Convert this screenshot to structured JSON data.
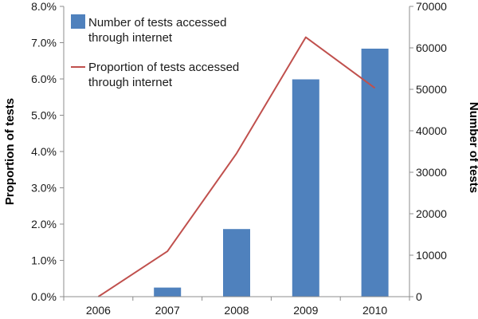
{
  "chart_data": {
    "type": "bar+line",
    "categories": [
      "2006",
      "2007",
      "2008",
      "2009",
      "2010"
    ],
    "series": [
      {
        "name": "Number of tests accessed through internet",
        "legend_lines": [
          "Number of tests accessed",
          "through internet"
        ],
        "type": "bar",
        "axis": "right",
        "color": "#4f81bd",
        "values": [
          0,
          2200,
          16300,
          52400,
          59800
        ]
      },
      {
        "name": "Proportion of tests accessed through internet",
        "legend_lines": [
          "Proportion of tests accessed",
          "through internet"
        ],
        "type": "line",
        "axis": "left",
        "color": "#c0504d",
        "values": [
          0.0,
          1.25,
          3.95,
          7.15,
          5.75
        ]
      }
    ],
    "y_left": {
      "label": "Proportion of tests",
      "ylim": [
        0,
        8
      ],
      "ticks": [
        0,
        1,
        2,
        3,
        4,
        5,
        6,
        7,
        8
      ],
      "tick_labels": [
        "0.0%",
        "1.0%",
        "2.0%",
        "3.0%",
        "4.0%",
        "5.0%",
        "6.0%",
        "7.0%",
        "8.0%"
      ]
    },
    "y_right": {
      "label": "Number of tests",
      "ylim": [
        0,
        70000
      ],
      "ticks": [
        0,
        10000,
        20000,
        30000,
        40000,
        50000,
        60000,
        70000
      ],
      "tick_labels": [
        "0",
        "10000",
        "20000",
        "30000",
        "40000",
        "50000",
        "60000",
        "70000"
      ]
    },
    "xlabel": "",
    "grid": false,
    "legend_position": "top-left"
  }
}
